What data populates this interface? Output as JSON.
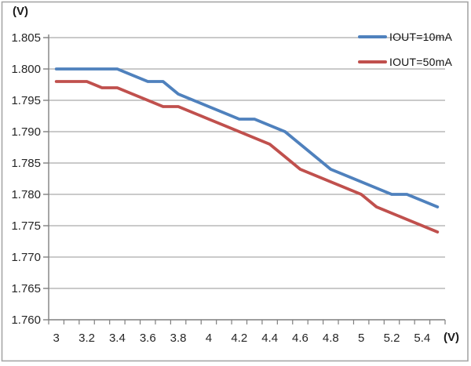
{
  "figure": {
    "kind": "voltage-regulation-line-chart"
  },
  "chart_data": {
    "type": "line",
    "title": "",
    "xlabel": "(V)",
    "ylabel": "(V)",
    "grid": true,
    "legend_position": "top-right",
    "ylim": [
      1.76,
      1.805
    ],
    "x": [
      3.0,
      3.1,
      3.2,
      3.3,
      3.4,
      3.5,
      3.6,
      3.7,
      3.8,
      3.9,
      4.0,
      4.1,
      4.2,
      4.3,
      4.4,
      4.5,
      4.6,
      4.7,
      4.8,
      4.9,
      5.0,
      5.1,
      5.2,
      5.3,
      5.4,
      5.5
    ],
    "x_tick_labels": [
      "3",
      "3.2",
      "3.4",
      "3.6",
      "3.8",
      "4",
      "4.2",
      "4.4",
      "4.6",
      "4.8",
      "5",
      "5.2",
      "5.4"
    ],
    "y_tick_labels": [
      "1.805",
      "1.800",
      "1.795",
      "1.790",
      "1.785",
      "1.780",
      "1.775",
      "1.770",
      "1.765",
      "1.760"
    ],
    "series": [
      {
        "name": "IOUT=10mA",
        "color": "#4F81BD",
        "values": [
          1.8,
          1.8,
          1.8,
          1.8,
          1.8,
          1.799,
          1.798,
          1.798,
          1.796,
          1.795,
          1.794,
          1.793,
          1.792,
          1.792,
          1.791,
          1.79,
          1.788,
          1.786,
          1.784,
          1.783,
          1.782,
          1.781,
          1.78,
          1.78,
          1.779,
          1.778
        ]
      },
      {
        "name": "IOUT=50mA",
        "color": "#C0504D",
        "values": [
          1.798,
          1.798,
          1.798,
          1.797,
          1.797,
          1.796,
          1.795,
          1.794,
          1.794,
          1.793,
          1.792,
          1.791,
          1.79,
          1.789,
          1.788,
          1.786,
          1.784,
          1.783,
          1.782,
          1.781,
          1.78,
          1.778,
          1.777,
          1.776,
          1.775,
          1.774
        ]
      }
    ],
    "colors": {
      "grid": "#ABABAB",
      "axis": "#7F7F7F",
      "frame": "#A6A6A6",
      "text": "#262626"
    }
  }
}
